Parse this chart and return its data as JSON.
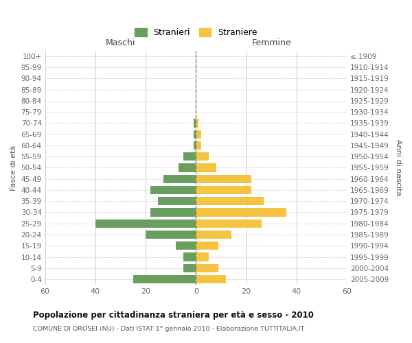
{
  "age_groups": [
    "0-4",
    "5-9",
    "10-14",
    "15-19",
    "20-24",
    "25-29",
    "30-34",
    "35-39",
    "40-44",
    "45-49",
    "50-54",
    "55-59",
    "60-64",
    "65-69",
    "70-74",
    "75-79",
    "80-84",
    "85-89",
    "90-94",
    "95-99",
    "100+"
  ],
  "birth_years": [
    "2005-2009",
    "2000-2004",
    "1995-1999",
    "1990-1994",
    "1985-1989",
    "1980-1984",
    "1975-1979",
    "1970-1974",
    "1965-1969",
    "1960-1964",
    "1955-1959",
    "1950-1954",
    "1945-1949",
    "1940-1944",
    "1935-1939",
    "1930-1934",
    "1925-1929",
    "1920-1924",
    "1915-1919",
    "1910-1914",
    "≤ 1909"
  ],
  "maschi": [
    25,
    5,
    5,
    8,
    20,
    40,
    18,
    15,
    18,
    13,
    7,
    5,
    1,
    1,
    1,
    0,
    0,
    0,
    0,
    0,
    0
  ],
  "femmine": [
    12,
    9,
    5,
    9,
    14,
    26,
    36,
    27,
    22,
    22,
    8,
    5,
    2,
    2,
    1,
    0,
    0,
    0,
    0,
    0,
    0
  ],
  "color_maschi": "#6a9e5e",
  "color_femmine": "#f5c342",
  "title": "Popolazione per cittadinanza straniera per età e sesso - 2010",
  "subtitle": "COMUNE DI OROSEI (NU) - Dati ISTAT 1° gennaio 2010 - Elaborazione TUTTITALIA.IT",
  "xlabel_left": "Maschi",
  "xlabel_right": "Femmine",
  "ylabel_left": "Fasce di età",
  "ylabel_right": "Anni di nascita",
  "legend_maschi": "Stranieri",
  "legend_femmine": "Straniere",
  "xlim": 60,
  "xticks": [
    -60,
    -40,
    -20,
    0,
    20,
    40,
    60
  ],
  "xticklabels": [
    "60",
    "40",
    "20",
    "0",
    "20",
    "40",
    "60"
  ],
  "background_color": "#ffffff",
  "grid_color": "#cccccc"
}
